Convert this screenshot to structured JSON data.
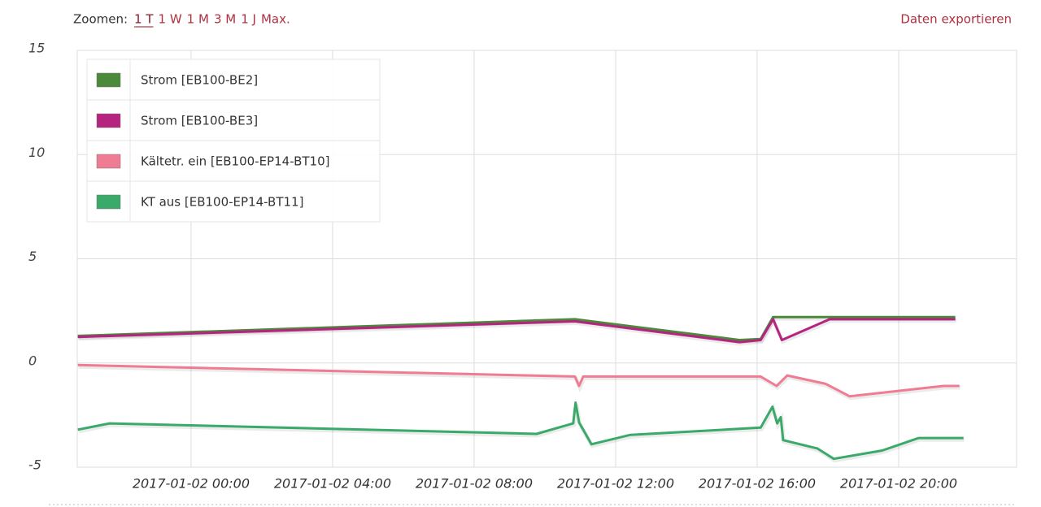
{
  "toolbar": {
    "zoom_label": "Zoomen:",
    "zoom_options": [
      "1 T",
      "1 W",
      "1 M",
      "3 M",
      "1 J",
      "Max."
    ],
    "export_label": "Daten exportieren"
  },
  "chart_data": {
    "type": "line",
    "xlim": [
      "2017-01-01 20:47",
      "2017-01-02 23:20"
    ],
    "xticks": [
      "2017-01-02 00:00",
      "2017-01-02 04:00",
      "2017-01-02 08:00",
      "2017-01-02 12:00",
      "2017-01-02 16:00",
      "2017-01-02 20:00"
    ],
    "ylim": [
      -5,
      15
    ],
    "yticks": [
      -5,
      0,
      5,
      10,
      15
    ],
    "grid": true,
    "series": [
      {
        "name": "Strom [EB100-BE2]",
        "color": "#4a8a3a",
        "x": [
          "2017-01-01 20:48",
          "2017-01-02 10:51",
          "2017-01-02 15:30",
          "2017-01-02 16:06",
          "2017-01-02 16:27",
          "2017-01-02 21:36"
        ],
        "values": [
          1.3,
          2.1,
          1.1,
          1.15,
          2.2,
          2.2
        ]
      },
      {
        "name": "Strom [EB100-BE3]",
        "color": "#b5247f",
        "x": [
          "2017-01-01 20:48",
          "2017-01-02 10:51",
          "2017-01-02 15:30",
          "2017-01-02 16:06",
          "2017-01-02 16:27",
          "2017-01-02 16:42",
          "2017-01-02 18:03",
          "2017-01-02 21:36"
        ],
        "values": [
          1.25,
          2.0,
          1.0,
          1.1,
          2.1,
          1.1,
          2.1,
          2.1
        ]
      },
      {
        "name": "Kältetr. ein [EB100-EP14-BT10]",
        "color": "#f07c94",
        "x": [
          "2017-01-01 20:48",
          "2017-01-02 10:51",
          "2017-01-02 10:58",
          "2017-01-02 11:05",
          "2017-01-02 16:06",
          "2017-01-02 16:33",
          "2017-01-02 16:51",
          "2017-01-02 17:56",
          "2017-01-02 18:37",
          "2017-01-02 21:16",
          "2017-01-02 21:43"
        ],
        "values": [
          -0.1,
          -0.65,
          -1.1,
          -0.65,
          -0.65,
          -1.1,
          -0.6,
          -1.0,
          -1.6,
          -1.1,
          -1.1
        ]
      },
      {
        "name": "KT aus [EB100-EP14-BT11]",
        "color": "#3aaa6a",
        "x": [
          "2017-01-01 20:48",
          "2017-01-01 21:42",
          "2017-01-02 09:46",
          "2017-01-02 10:48",
          "2017-01-02 10:52",
          "2017-01-02 10:58",
          "2017-01-02 11:19",
          "2017-01-02 12:25",
          "2017-01-02 16:06",
          "2017-01-02 16:26",
          "2017-01-02 16:34",
          "2017-01-02 16:40",
          "2017-01-02 16:44",
          "2017-01-02 17:42",
          "2017-01-02 18:10",
          "2017-01-02 19:32",
          "2017-01-02 20:34",
          "2017-01-02 21:50"
        ],
        "values": [
          -3.2,
          -2.9,
          -3.4,
          -2.9,
          -1.9,
          -2.85,
          -3.9,
          -3.45,
          -3.1,
          -2.1,
          -2.9,
          -2.6,
          -3.7,
          -4.1,
          -4.6,
          -4.2,
          -3.6,
          -3.6
        ]
      }
    ]
  }
}
